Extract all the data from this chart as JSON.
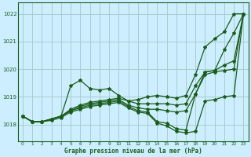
{
  "title": "Graphe pression niveau de la mer (hPa)",
  "bg_color": "#cceeff",
  "grid_color": "#aacccc",
  "line_color": "#1a5c1a",
  "xlim": [
    -0.5,
    23.5
  ],
  "ylim": [
    1017.4,
    1022.4
  ],
  "yticks": [
    1018,
    1019,
    1020,
    1021,
    1022
  ],
  "xticks": [
    0,
    1,
    2,
    3,
    4,
    5,
    6,
    7,
    8,
    9,
    10,
    11,
    12,
    13,
    14,
    15,
    16,
    17,
    18,
    19,
    20,
    21,
    22,
    23
  ],
  "series": [
    [
      1018.3,
      1018.1,
      1018.1,
      1018.2,
      1018.3,
      1019.4,
      1019.6,
      1019.3,
      1019.25,
      1019.3,
      1019.05,
      1018.85,
      1018.9,
      1019.0,
      1019.05,
      1019.0,
      1018.95,
      1019.05,
      1019.8,
      1020.8,
      1021.1,
      1021.35,
      1022.0,
      1022.0
    ],
    [
      1018.3,
      1018.1,
      1018.1,
      1018.2,
      1018.3,
      1018.55,
      1018.7,
      1018.8,
      1018.85,
      1018.9,
      1018.95,
      1018.85,
      1018.75,
      1018.75,
      1018.75,
      1018.75,
      1018.7,
      1018.75,
      1019.4,
      1019.9,
      1019.95,
      1020.15,
      1020.3,
      1022.0
    ],
    [
      1018.3,
      1018.1,
      1018.1,
      1018.2,
      1018.3,
      1018.5,
      1018.65,
      1018.75,
      1018.8,
      1018.85,
      1018.9,
      1018.7,
      1018.6,
      1018.55,
      1018.55,
      1018.5,
      1018.45,
      1018.5,
      1019.1,
      1019.9,
      1019.95,
      1020.7,
      1021.3,
      1022.0
    ],
    [
      1018.3,
      1018.1,
      1018.1,
      1018.2,
      1018.3,
      1018.5,
      1018.6,
      1018.7,
      1018.75,
      1018.8,
      1018.85,
      1018.65,
      1018.5,
      1018.45,
      1018.1,
      1018.05,
      1017.85,
      1017.8,
      1019.1,
      1019.8,
      1019.9,
      1019.95,
      1020.0,
      1022.0
    ],
    [
      1018.3,
      1018.1,
      1018.1,
      1018.15,
      1018.25,
      1018.45,
      1018.55,
      1018.65,
      1018.7,
      1018.75,
      1018.8,
      1018.6,
      1018.45,
      1018.4,
      1018.05,
      1017.95,
      1017.75,
      1017.7,
      1017.75,
      1018.85,
      1018.9,
      1019.0,
      1019.05,
      1022.0
    ]
  ]
}
